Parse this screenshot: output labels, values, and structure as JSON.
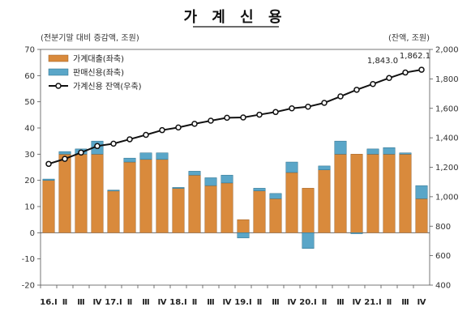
{
  "chart_data": {
    "type": "bar",
    "title": "가 계 신 용",
    "left_unit": "(전분기말 대비 증감액, 조원)",
    "right_unit": "(잔액, 조원)",
    "y_left": {
      "min": -20,
      "max": 70,
      "ticks": [
        -20,
        -10,
        0,
        10,
        20,
        30,
        40,
        50,
        60,
        70
      ]
    },
    "y_right": {
      "min": 400,
      "max": 2000,
      "ticks": [
        400,
        600,
        800,
        1000,
        1200,
        1400,
        1600,
        1800,
        2000
      ],
      "tick_labels": [
        "400",
        "600",
        "800",
        "1,000",
        "1,200",
        "1,400",
        "1,600",
        "1,800",
        "2,000"
      ]
    },
    "categories": [
      "16.Ⅰ",
      "Ⅱ",
      "Ⅲ",
      "Ⅳ",
      "17.Ⅰ",
      "Ⅱ",
      "Ⅲ",
      "Ⅳ",
      "18.Ⅰ",
      "Ⅱ",
      "Ⅲ",
      "Ⅳ",
      "19.Ⅰ",
      "Ⅱ",
      "Ⅲ",
      "Ⅳ",
      "20.Ⅰ",
      "Ⅱ",
      "Ⅲ",
      "Ⅳ",
      "21.Ⅰ",
      "Ⅱ",
      "Ⅲ",
      "Ⅳ"
    ],
    "series": [
      {
        "name": "가계대출(좌축)",
        "kind": "bar",
        "axis": "left",
        "color": "#d98a3c",
        "values": [
          20,
          30,
          30,
          30,
          16,
          27,
          28,
          28,
          17,
          22,
          18,
          19,
          5,
          16,
          13,
          23,
          17,
          24,
          30,
          30,
          30,
          30,
          30,
          13
        ]
      },
      {
        "name": "판매신용(좌축)",
        "kind": "bar",
        "axis": "left",
        "color": "#5aa6c8",
        "values": [
          0.5,
          1,
          2,
          5,
          0.3,
          1.5,
          2.5,
          2.5,
          0.3,
          1.5,
          3,
          3,
          -2,
          1,
          2,
          4,
          -6,
          1.5,
          5,
          -0.2,
          2,
          2.5,
          0.5,
          5
        ]
      },
      {
        "name": "가계신용 잔액(우축)",
        "kind": "line",
        "axis": "right",
        "color": "#111111",
        "values": [
          1223,
          1257,
          1300,
          1344,
          1360,
          1390,
          1420,
          1452,
          1470,
          1495,
          1516,
          1536,
          1538,
          1557,
          1575,
          1600,
          1611,
          1637,
          1681,
          1726,
          1765,
          1806,
          1843,
          1862.1
        ]
      }
    ],
    "annotations": [
      "1,843.0",
      "1,862.1"
    ],
    "legend_position": "top-left"
  }
}
